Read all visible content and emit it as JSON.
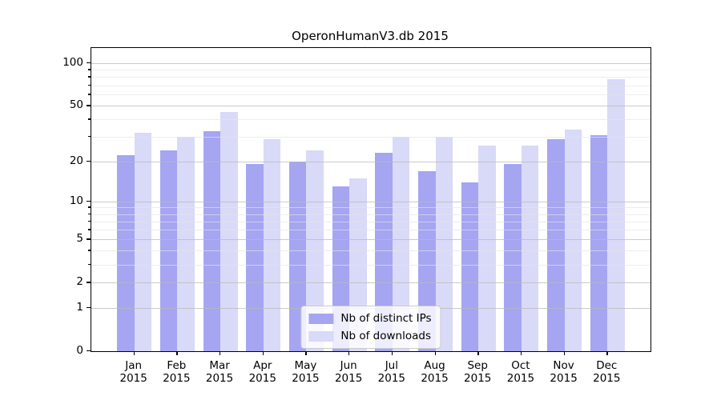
{
  "chart_data": {
    "type": "bar",
    "title": "OperonHumanV3.db 2015",
    "categories": [
      "Jan",
      "Feb",
      "Mar",
      "Apr",
      "May",
      "Jun",
      "Jul",
      "Aug",
      "Sep",
      "Oct",
      "Nov",
      "Dec"
    ],
    "category_year": "2015",
    "series": [
      {
        "name": "Nb of distinct IPs",
        "color": "#a5a5f2",
        "values": [
          22,
          24,
          33,
          19,
          20,
          13,
          23,
          17,
          14,
          19,
          29,
          31
        ]
      },
      {
        "name": "Nb of downloads",
        "color": "#d9d9f8",
        "values": [
          32,
          30,
          45,
          29,
          24,
          15,
          30,
          30,
          26,
          26,
          34,
          77
        ]
      }
    ],
    "yscale": "log1p",
    "ylim": [
      0,
      128
    ],
    "yticks": [
      0,
      1,
      2,
      5,
      10,
      20,
      50,
      100
    ],
    "minor_yticks": [
      3,
      4,
      6,
      7,
      8,
      9,
      30,
      40,
      60,
      70,
      80,
      90
    ],
    "grid": true,
    "legend_position": "lower center"
  }
}
